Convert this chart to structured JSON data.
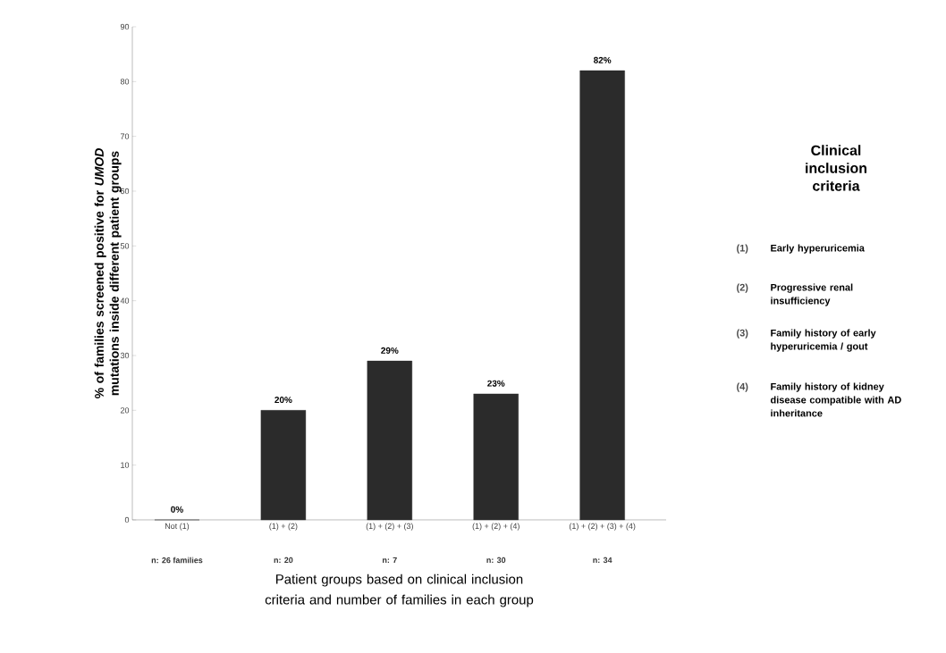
{
  "chart_data": {
    "type": "bar",
    "ylabel": "% of families screened positive for *UMOD* mutations inside different patient groups",
    "xlabel": "Patient groups based on clinical inclusion criteria and number of families in each group",
    "categories": [
      "Not (1)",
      "(1) + (2)",
      "(1) + (2) + (3)",
      "(1) + (2) + (4)",
      "(1) + (2) + (3) + (4)"
    ],
    "values": [
      0,
      20,
      29,
      23,
      82
    ],
    "value_labels": [
      "0%",
      "20%",
      "29%",
      "23%",
      "82%"
    ],
    "color": "#2b2b2b",
    "ylim": [
      0,
      90
    ],
    "yticks": [
      0,
      10,
      20,
      30,
      40,
      50,
      60,
      70,
      80,
      90
    ],
    "annotations": [
      "n: 26 families",
      "n: 20",
      "n: 7",
      "n: 30",
      "n: 34",
      "Clinical inclusion criteria",
      "(1)",
      "Early hyperuricemia",
      "(2)",
      "Progressive renal insufficiency",
      "(3)",
      "Family history of early hyperuricemia / gout",
      "(4)",
      "Family history of kidney disease compatible with AD inheritance"
    ]
  }
}
